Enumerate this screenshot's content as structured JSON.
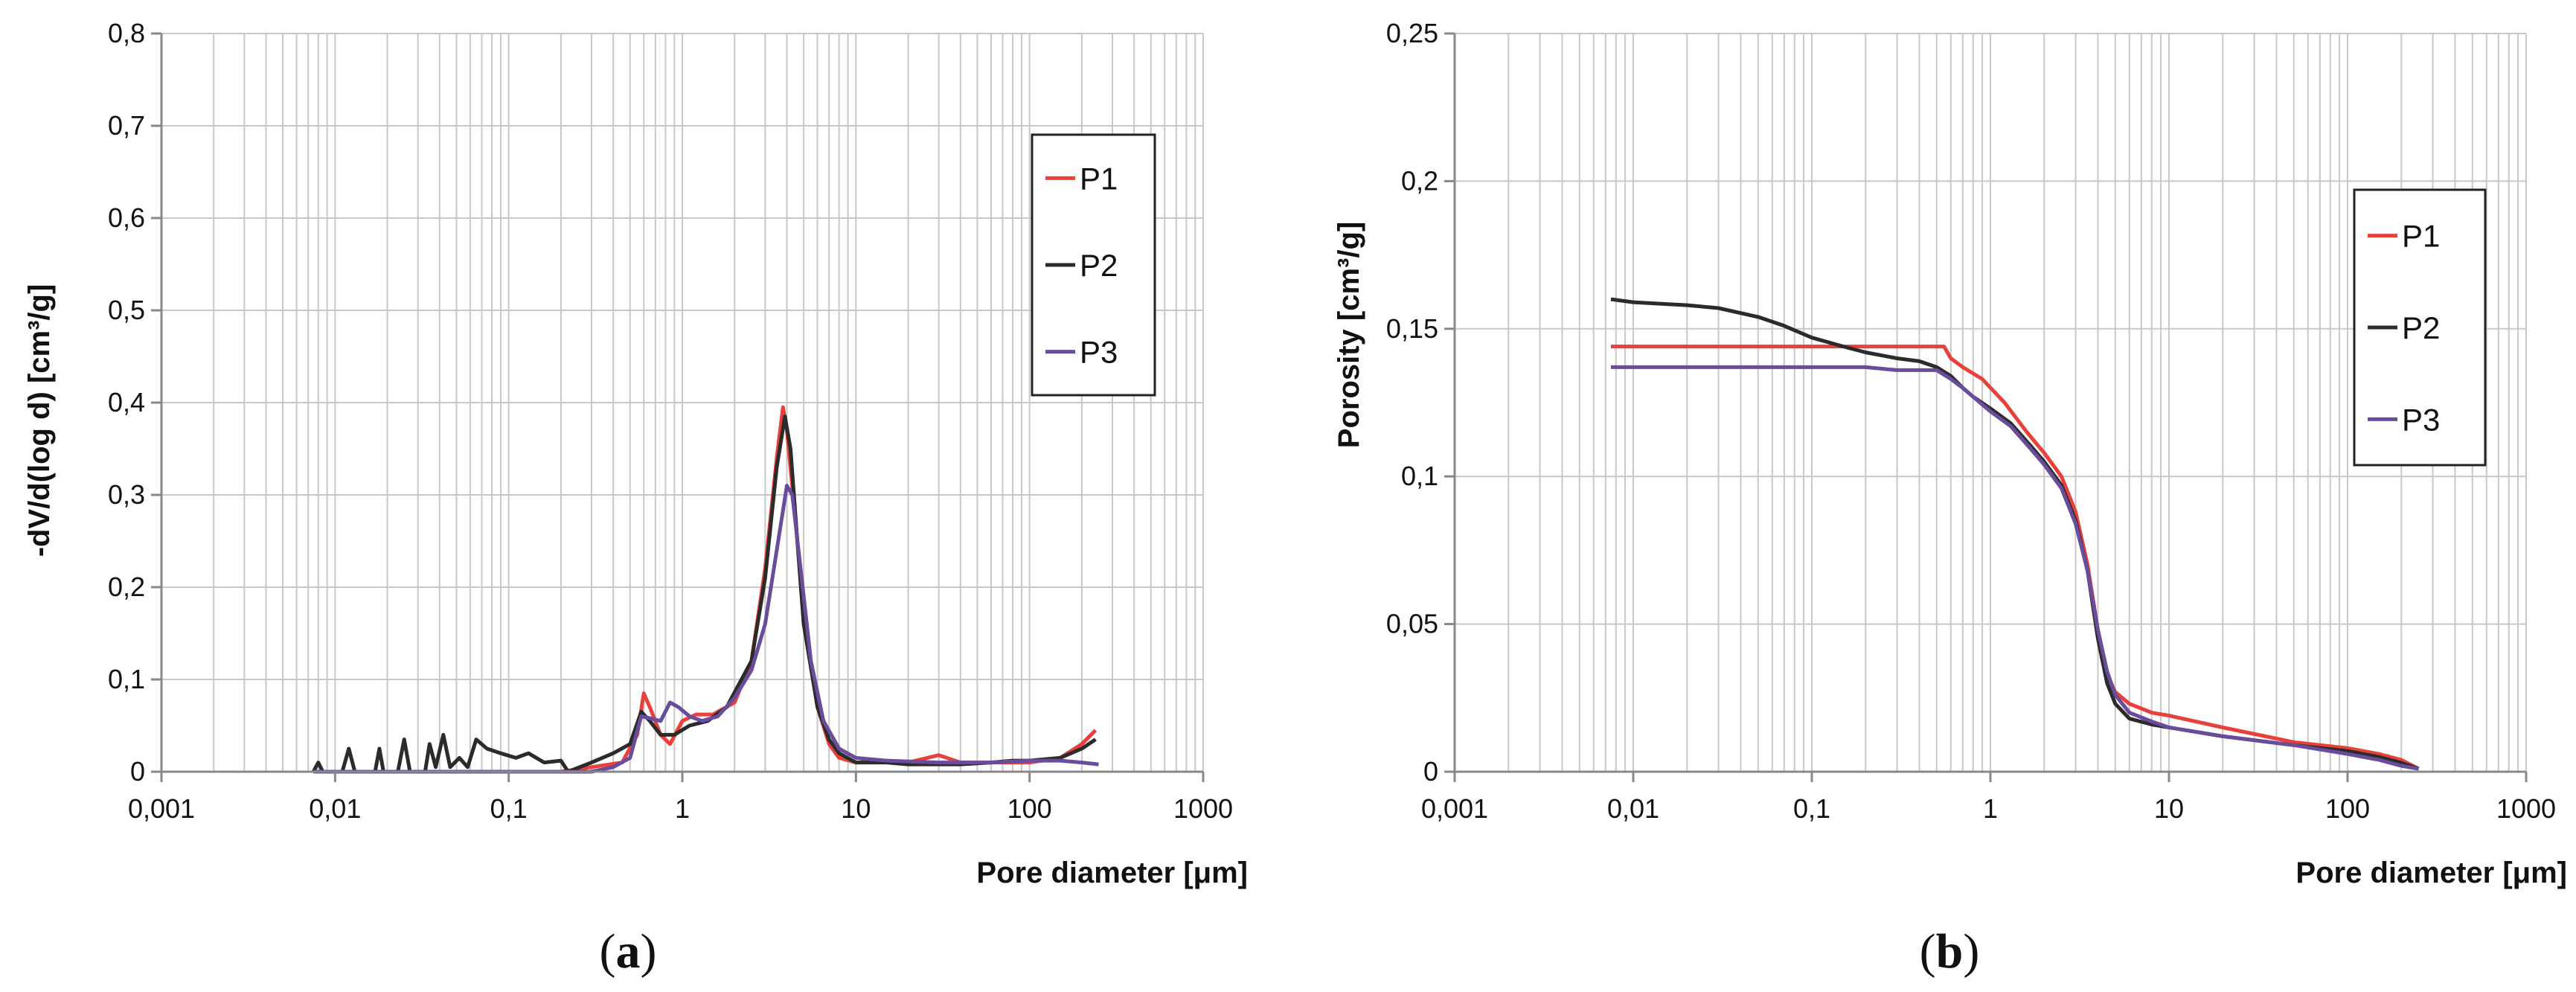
{
  "chart_data": [
    {
      "type": "line",
      "panel_label": "a",
      "xlabel": "Pore diameter [μm]",
      "ylabel": "-dV/d(log d) [cm³/g]",
      "xscale": "log",
      "xlim": [
        0.001,
        1000
      ],
      "ylim": [
        0,
        0.8
      ],
      "x_tick_labels": [
        "0,001",
        "0,01",
        "0,1",
        "1",
        "10",
        "100",
        "1000"
      ],
      "y_tick_labels": [
        "0",
        "0,1",
        "0,2",
        "0,3",
        "0,4",
        "0,5",
        "0,6",
        "0,7",
        "0,8"
      ],
      "grid": true,
      "legend": {
        "position": "top-right",
        "entries": [
          "P1",
          "P2",
          "P3"
        ]
      },
      "series": [
        {
          "name": "P1",
          "color": "#e8413c",
          "points": [
            [
              0.0075,
              0
            ],
            [
              0.2,
              0
            ],
            [
              0.3,
              0.005
            ],
            [
              0.45,
              0.01
            ],
            [
              0.55,
              0.04
            ],
            [
              0.6,
              0.085
            ],
            [
              0.65,
              0.07
            ],
            [
              0.75,
              0.04
            ],
            [
              0.85,
              0.03
            ],
            [
              1.0,
              0.055
            ],
            [
              1.2,
              0.062
            ],
            [
              1.5,
              0.062
            ],
            [
              2.0,
              0.075
            ],
            [
              2.5,
              0.12
            ],
            [
              3.0,
              0.22
            ],
            [
              3.5,
              0.34
            ],
            [
              3.8,
              0.395
            ],
            [
              4.0,
              0.37
            ],
            [
              4.5,
              0.27
            ],
            [
              5.0,
              0.17
            ],
            [
              6.0,
              0.07
            ],
            [
              7.0,
              0.03
            ],
            [
              8.0,
              0.015
            ],
            [
              10,
              0.01
            ],
            [
              15,
              0.012
            ],
            [
              20,
              0.01
            ],
            [
              30,
              0.018
            ],
            [
              40,
              0.01
            ],
            [
              60,
              0.01
            ],
            [
              100,
              0.01
            ],
            [
              150,
              0.015
            ],
            [
              200,
              0.03
            ],
            [
              240,
              0.045
            ]
          ]
        },
        {
          "name": "P2",
          "color": "#2b2b2b",
          "points": [
            [
              0.0075,
              0
            ],
            [
              0.008,
              0.01
            ],
            [
              0.0085,
              0
            ],
            [
              0.011,
              0
            ],
            [
              0.012,
              0.025
            ],
            [
              0.013,
              0
            ],
            [
              0.017,
              0
            ],
            [
              0.018,
              0.025
            ],
            [
              0.019,
              0
            ],
            [
              0.023,
              0
            ],
            [
              0.025,
              0.035
            ],
            [
              0.027,
              0
            ],
            [
              0.033,
              0
            ],
            [
              0.035,
              0.03
            ],
            [
              0.038,
              0.005
            ],
            [
              0.042,
              0.04
            ],
            [
              0.046,
              0.005
            ],
            [
              0.052,
              0.015
            ],
            [
              0.058,
              0.005
            ],
            [
              0.065,
              0.035
            ],
            [
              0.075,
              0.025
            ],
            [
              0.09,
              0.02
            ],
            [
              0.11,
              0.015
            ],
            [
              0.13,
              0.02
            ],
            [
              0.16,
              0.01
            ],
            [
              0.2,
              0.012
            ],
            [
              0.22,
              0
            ],
            [
              0.3,
              0.01
            ],
            [
              0.4,
              0.02
            ],
            [
              0.5,
              0.03
            ],
            [
              0.58,
              0.065
            ],
            [
              0.65,
              0.055
            ],
            [
              0.75,
              0.04
            ],
            [
              0.9,
              0.04
            ],
            [
              1.1,
              0.05
            ],
            [
              1.4,
              0.055
            ],
            [
              1.8,
              0.07
            ],
            [
              2.5,
              0.12
            ],
            [
              3.0,
              0.21
            ],
            [
              3.5,
              0.33
            ],
            [
              3.9,
              0.385
            ],
            [
              4.2,
              0.35
            ],
            [
              4.6,
              0.25
            ],
            [
              5.0,
              0.16
            ],
            [
              6.0,
              0.07
            ],
            [
              7.0,
              0.035
            ],
            [
              8.0,
              0.02
            ],
            [
              10,
              0.01
            ],
            [
              15,
              0.01
            ],
            [
              20,
              0.008
            ],
            [
              40,
              0.008
            ],
            [
              60,
              0.01
            ],
            [
              80,
              0.012
            ],
            [
              100,
              0.012
            ],
            [
              150,
              0.015
            ],
            [
              200,
              0.025
            ],
            [
              240,
              0.035
            ]
          ]
        },
        {
          "name": "P3",
          "color": "#6a4c9c",
          "points": [
            [
              0.0075,
              0
            ],
            [
              0.3,
              0
            ],
            [
              0.4,
              0.005
            ],
            [
              0.5,
              0.015
            ],
            [
              0.58,
              0.06
            ],
            [
              0.65,
              0.058
            ],
            [
              0.75,
              0.055
            ],
            [
              0.85,
              0.075
            ],
            [
              0.95,
              0.07
            ],
            [
              1.1,
              0.06
            ],
            [
              1.3,
              0.055
            ],
            [
              1.6,
              0.06
            ],
            [
              2.0,
              0.08
            ],
            [
              2.5,
              0.11
            ],
            [
              3.0,
              0.16
            ],
            [
              3.5,
              0.24
            ],
            [
              4.0,
              0.31
            ],
            [
              4.3,
              0.3
            ],
            [
              4.8,
              0.22
            ],
            [
              5.5,
              0.12
            ],
            [
              6.5,
              0.055
            ],
            [
              8.0,
              0.025
            ],
            [
              10,
              0.015
            ],
            [
              15,
              0.012
            ],
            [
              30,
              0.01
            ],
            [
              60,
              0.01
            ],
            [
              100,
              0.012
            ],
            [
              150,
              0.012
            ],
            [
              200,
              0.01
            ],
            [
              250,
              0.008
            ]
          ]
        }
      ]
    },
    {
      "type": "line",
      "panel_label": "b",
      "xlabel": "Pore diameter [μm]",
      "ylabel": "Porosity [cm³/g]",
      "xscale": "log",
      "xlim": [
        0.001,
        1000
      ],
      "ylim": [
        0,
        0.25
      ],
      "x_tick_labels": [
        "0,001",
        "0,01",
        "0,1",
        "1",
        "10",
        "100",
        "1000"
      ],
      "y_tick_labels": [
        "0",
        "0,05",
        "0,1",
        "0,15",
        "0,2",
        "0,25"
      ],
      "grid": true,
      "legend": {
        "position": "right",
        "entries": [
          "P1",
          "P2",
          "P3"
        ]
      },
      "series": [
        {
          "name": "P1",
          "color": "#e8413c",
          "points": [
            [
              0.0075,
              0.144
            ],
            [
              0.55,
              0.144
            ],
            [
              0.6,
              0.14
            ],
            [
              0.7,
              0.137
            ],
            [
              0.9,
              0.133
            ],
            [
              1.2,
              0.125
            ],
            [
              1.6,
              0.115
            ],
            [
              2.0,
              0.108
            ],
            [
              2.5,
              0.1
            ],
            [
              3.0,
              0.088
            ],
            [
              3.5,
              0.07
            ],
            [
              4.0,
              0.048
            ],
            [
              4.5,
              0.033
            ],
            [
              5.0,
              0.027
            ],
            [
              6.0,
              0.023
            ],
            [
              8.0,
              0.02
            ],
            [
              10,
              0.019
            ],
            [
              20,
              0.015
            ],
            [
              50,
              0.01
            ],
            [
              100,
              0.008
            ],
            [
              150,
              0.006
            ],
            [
              200,
              0.004
            ],
            [
              250,
              0.001
            ]
          ]
        },
        {
          "name": "P2",
          "color": "#2b2b2b",
          "points": [
            [
              0.0075,
              0.16
            ],
            [
              0.01,
              0.159
            ],
            [
              0.02,
              0.158
            ],
            [
              0.03,
              0.157
            ],
            [
              0.05,
              0.154
            ],
            [
              0.07,
              0.151
            ],
            [
              0.1,
              0.147
            ],
            [
              0.15,
              0.144
            ],
            [
              0.2,
              0.142
            ],
            [
              0.3,
              0.14
            ],
            [
              0.4,
              0.139
            ],
            [
              0.5,
              0.137
            ],
            [
              0.6,
              0.134
            ],
            [
              0.7,
              0.13
            ],
            [
              0.8,
              0.127
            ],
            [
              1.0,
              0.123
            ],
            [
              1.3,
              0.118
            ],
            [
              1.7,
              0.11
            ],
            [
              2.0,
              0.105
            ],
            [
              2.5,
              0.097
            ],
            [
              3.0,
              0.085
            ],
            [
              3.5,
              0.068
            ],
            [
              4.0,
              0.045
            ],
            [
              4.5,
              0.03
            ],
            [
              5.0,
              0.023
            ],
            [
              6.0,
              0.018
            ],
            [
              8.0,
              0.016
            ],
            [
              10,
              0.015
            ],
            [
              20,
              0.012
            ],
            [
              50,
              0.009
            ],
            [
              100,
              0.007
            ],
            [
              150,
              0.005
            ],
            [
              200,
              0.003
            ],
            [
              250,
              0.001
            ]
          ]
        },
        {
          "name": "P3",
          "color": "#6a4c9c",
          "points": [
            [
              0.0075,
              0.137
            ],
            [
              0.2,
              0.137
            ],
            [
              0.3,
              0.136
            ],
            [
              0.5,
              0.136
            ],
            [
              0.6,
              0.133
            ],
            [
              0.7,
              0.13
            ],
            [
              0.8,
              0.127
            ],
            [
              1.0,
              0.122
            ],
            [
              1.3,
              0.117
            ],
            [
              1.7,
              0.109
            ],
            [
              2.0,
              0.104
            ],
            [
              2.5,
              0.096
            ],
            [
              3.0,
              0.084
            ],
            [
              3.5,
              0.068
            ],
            [
              4.0,
              0.048
            ],
            [
              4.5,
              0.034
            ],
            [
              5.0,
              0.026
            ],
            [
              6.0,
              0.02
            ],
            [
              8.0,
              0.017
            ],
            [
              10,
              0.015
            ],
            [
              20,
              0.012
            ],
            [
              50,
              0.009
            ],
            [
              100,
              0.006
            ],
            [
              150,
              0.004
            ],
            [
              200,
              0.002
            ],
            [
              250,
              0.001
            ]
          ]
        }
      ]
    }
  ]
}
